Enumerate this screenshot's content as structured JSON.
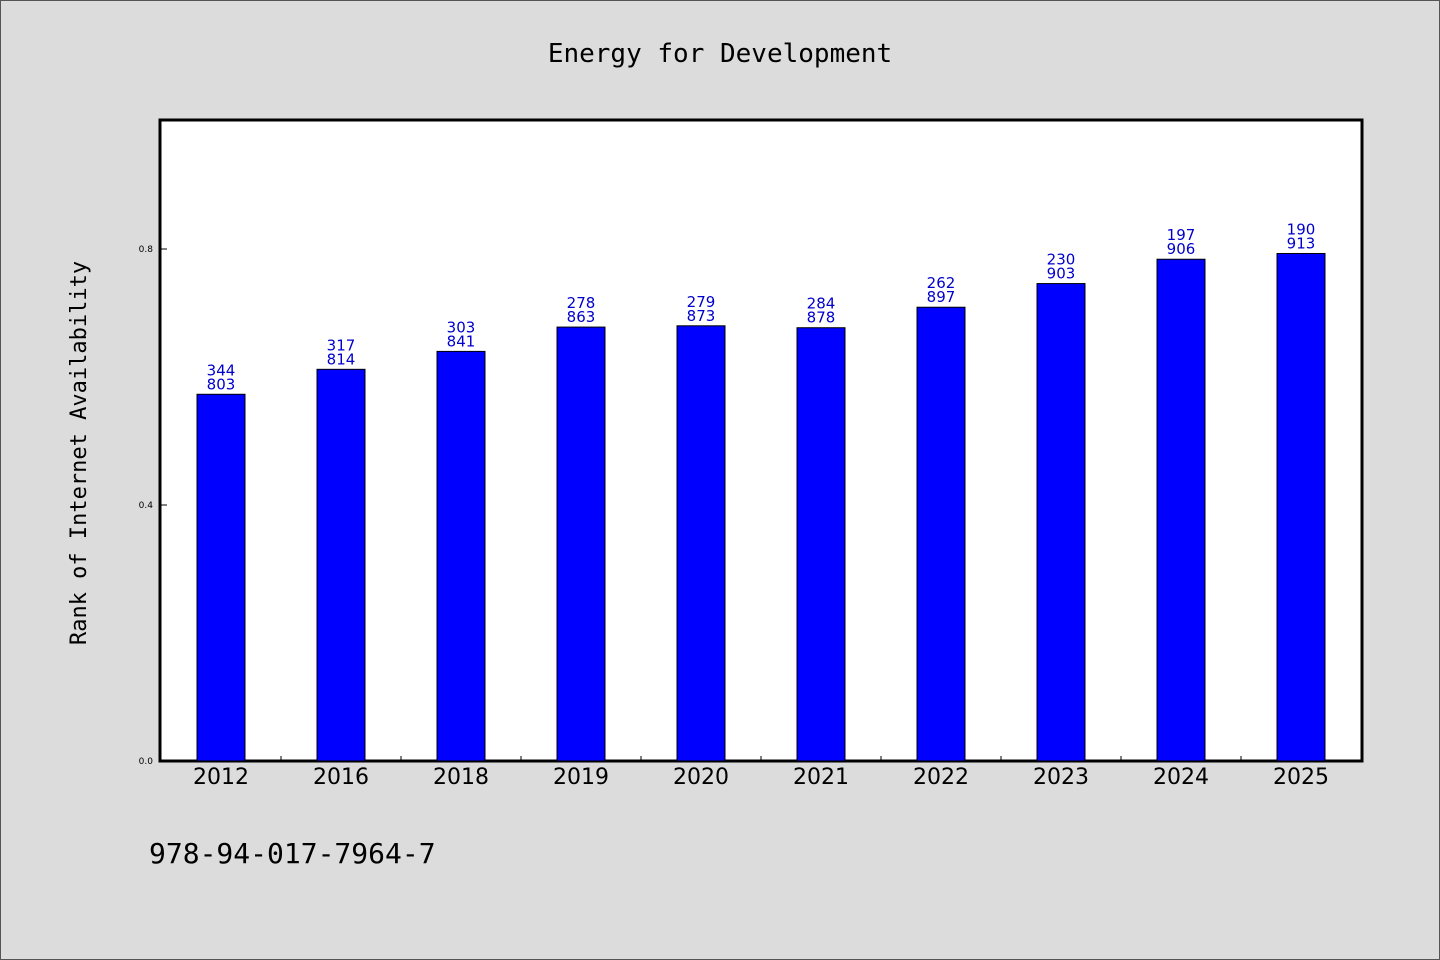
{
  "chart_data": {
    "type": "bar",
    "title": "Energy for Development",
    "xlabel": "",
    "ylabel": "Rank of Internet Availability",
    "categories": [
      "2012",
      "2016",
      "2018",
      "2019",
      "2020",
      "2021",
      "2022",
      "2023",
      "2024",
      "2025"
    ],
    "values": [
      0.573,
      0.612,
      0.64,
      0.678,
      0.68,
      0.677,
      0.709,
      0.746,
      0.784,
      0.793
    ],
    "bar_labels": [
      [
        "344",
        "803"
      ],
      [
        "317",
        "814"
      ],
      [
        "303",
        "841"
      ],
      [
        "278",
        "863"
      ],
      [
        "279",
        "873"
      ],
      [
        "284",
        "878"
      ],
      [
        "262",
        "897"
      ],
      [
        "230",
        "903"
      ],
      [
        "197",
        "906"
      ],
      [
        "190",
        "913"
      ]
    ],
    "ylim": [
      0,
      1.0
    ],
    "yticks": [
      "0.0",
      "0.4",
      "0.8"
    ],
    "ytick_values": [
      0.0,
      0.4,
      0.8
    ],
    "grid": false,
    "bar_color": "#0000ff",
    "label_color": "#0000cc",
    "background": "#dcdcdc",
    "plot_background": "#ffffff"
  },
  "footer": {
    "isbn": "978-94-017-7964-7"
  }
}
